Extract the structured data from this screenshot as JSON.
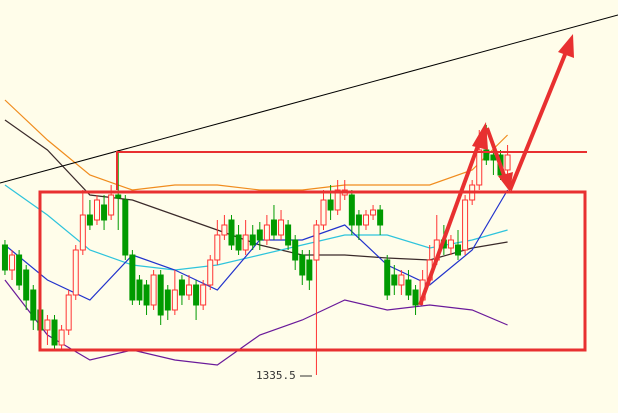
{
  "chart_data": {
    "type": "candlestick",
    "up_color": "#ff3333",
    "down_color": "#009a00",
    "xlim": [
      -0.7,
      86.6
    ],
    "ylim": [
      1331.7,
      1373
    ],
    "open": [
      1348.5,
      1346,
      1347.5,
      1346,
      1344,
      1342,
      1340,
      1341,
      1338.5,
      1340,
      1343.5,
      1348,
      1351.5,
      1351,
      1352.5,
      1351.5,
      1353.5,
      1353,
      1347.5,
      1345,
      1344.5,
      1342.5,
      1345.5,
      1344,
      1342,
      1345,
      1343.5,
      1344.5,
      1342.5,
      1344.5,
      1347,
      1349.5,
      1351,
      1349.5,
      1348,
      1349.5,
      1350,
      1349,
      1351,
      1349.5,
      1350.5,
      1349,
      1347.5,
      1347,
      1347,
      1350.5,
      1353,
      1352,
      1353.5,
      1353.5,
      1351.5,
      1350.5,
      1351.5,
      1352,
      1347,
      1345.5,
      1344.5,
      1345,
      1344,
      1343,
      1345,
      1347,
      1349,
      1348.2,
      1348.5,
      1348,
      1353,
      1354.5,
      1358,
      1357.5,
      1357.5,
      1356
    ],
    "high": [
      1349,
      1348,
      1348,
      1346.5,
      1344.5,
      1342.5,
      1341.5,
      1341.5,
      1340.5,
      1344,
      1348.5,
      1354,
      1353,
      1353.5,
      1353.5,
      1354.5,
      1358,
      1353.5,
      1348,
      1345.5,
      1345,
      1346,
      1346,
      1344.5,
      1346,
      1345.5,
      1345.5,
      1345,
      1345,
      1347.5,
      1351,
      1351.5,
      1351.5,
      1350.5,
      1351,
      1350.5,
      1350.8,
      1351.5,
      1352.5,
      1352,
      1351,
      1349.5,
      1348,
      1348,
      1351,
      1354,
      1354.5,
      1355,
      1355,
      1354,
      1352,
      1352,
      1352.5,
      1352.5,
      1347.5,
      1346.5,
      1346,
      1346,
      1344.5,
      1346,
      1348.5,
      1351.5,
      1350.5,
      1349.5,
      1350,
      1353.5,
      1355,
      1360,
      1360.5,
      1358.5,
      1358,
      1358.5
    ],
    "low": [
      1345.5,
      1345,
      1344,
      1342,
      1340,
      1339,
      1338.5,
      1338,
      1338,
      1339.5,
      1343,
      1347.5,
      1350,
      1350.5,
      1350,
      1351,
      1350,
      1347,
      1342.5,
      1342.5,
      1341.5,
      1342,
      1340.5,
      1341,
      1341.5,
      1342.5,
      1343,
      1341,
      1342,
      1344,
      1346.5,
      1349,
      1348,
      1347.5,
      1347.5,
      1348,
      1348,
      1348.5,
      1349,
      1349,
      1348,
      1346,
      1344.5,
      1344,
      1335.5,
      1350,
      1351,
      1351.5,
      1353,
      1349.5,
      1349,
      1350,
      1351,
      1349.5,
      1343,
      1343.5,
      1343.5,
      1343,
      1341.5,
      1342.5,
      1344.5,
      1346.5,
      1347.5,
      1347.5,
      1347,
      1347.5,
      1352.5,
      1354,
      1356.5,
      1355.5,
      1355,
      1354.5
    ],
    "close": [
      1346,
      1347.5,
      1344.5,
      1343,
      1341,
      1340,
      1341,
      1338.5,
      1340,
      1343.5,
      1348,
      1351.5,
      1350.5,
      1353,
      1351,
      1353.5,
      1353.2,
      1347.5,
      1343,
      1343,
      1342.5,
      1345.5,
      1341.5,
      1342,
      1344,
      1343.5,
      1344.5,
      1342.5,
      1344.5,
      1347,
      1349.5,
      1350.5,
      1348.5,
      1348,
      1349.5,
      1348.5,
      1349,
      1350.5,
      1349.5,
      1351,
      1348.5,
      1347,
      1345.5,
      1345,
      1350.5,
      1353,
      1352,
      1354,
      1354,
      1350.5,
      1350.5,
      1351.5,
      1352,
      1350.5,
      1343.5,
      1344.5,
      1345.5,
      1343.5,
      1342.5,
      1345,
      1347,
      1349,
      1348.2,
      1349,
      1347.5,
      1353,
      1354.5,
      1358,
      1357,
      1357,
      1355.5,
      1357.5
    ],
    "lines": [
      {
        "color": "#f08c1e",
        "x": [
          0,
          6,
          12,
          18,
          24,
          30,
          36,
          42,
          48,
          54,
          60,
          66,
          71
        ],
        "values": [
          1363,
          1359,
          1355.5,
          1354,
          1354.5,
          1354.5,
          1354,
          1354,
          1354.5,
          1354.5,
          1354.5,
          1356,
          1359.5
        ]
      },
      {
        "color": "#3a2a2a",
        "x": [
          0,
          6,
          12,
          18,
          24,
          30,
          36,
          42,
          48,
          54,
          60,
          66,
          71
        ],
        "values": [
          1361,
          1358,
          1353.5,
          1353,
          1351.5,
          1350,
          1348.5,
          1347.5,
          1347.5,
          1347.2,
          1347,
          1348.2,
          1348.8
        ]
      },
      {
        "color": "#2ec4dc",
        "x": [
          0,
          6,
          12,
          18,
          24,
          30,
          36,
          42,
          48,
          54,
          60,
          66,
          71
        ],
        "values": [
          1354.5,
          1351.5,
          1348,
          1346.5,
          1346,
          1346.5,
          1347.5,
          1348.5,
          1349.5,
          1349.5,
          1348.2,
          1349,
          1350
        ]
      },
      {
        "color": "#2233cc",
        "x": [
          0,
          6,
          12,
          18,
          24,
          30,
          36,
          42,
          48,
          54,
          60,
          66,
          71
        ],
        "values": [
          1348.5,
          1345,
          1343,
          1347.5,
          1346,
          1344,
          1349,
          1349,
          1350.5,
          1346.5,
          1344.5,
          1348,
          1354
        ]
      },
      {
        "color": "#6a1a9a",
        "x": [
          0,
          6,
          12,
          18,
          24,
          30,
          36,
          42,
          48,
          54,
          60,
          66,
          71
        ],
        "values": [
          1345,
          1339.5,
          1337,
          1338,
          1337,
          1336.5,
          1339.5,
          1341,
          1343,
          1342,
          1342.5,
          1342,
          1340.5
        ]
      }
    ],
    "low_label": 1335.5
  }
}
